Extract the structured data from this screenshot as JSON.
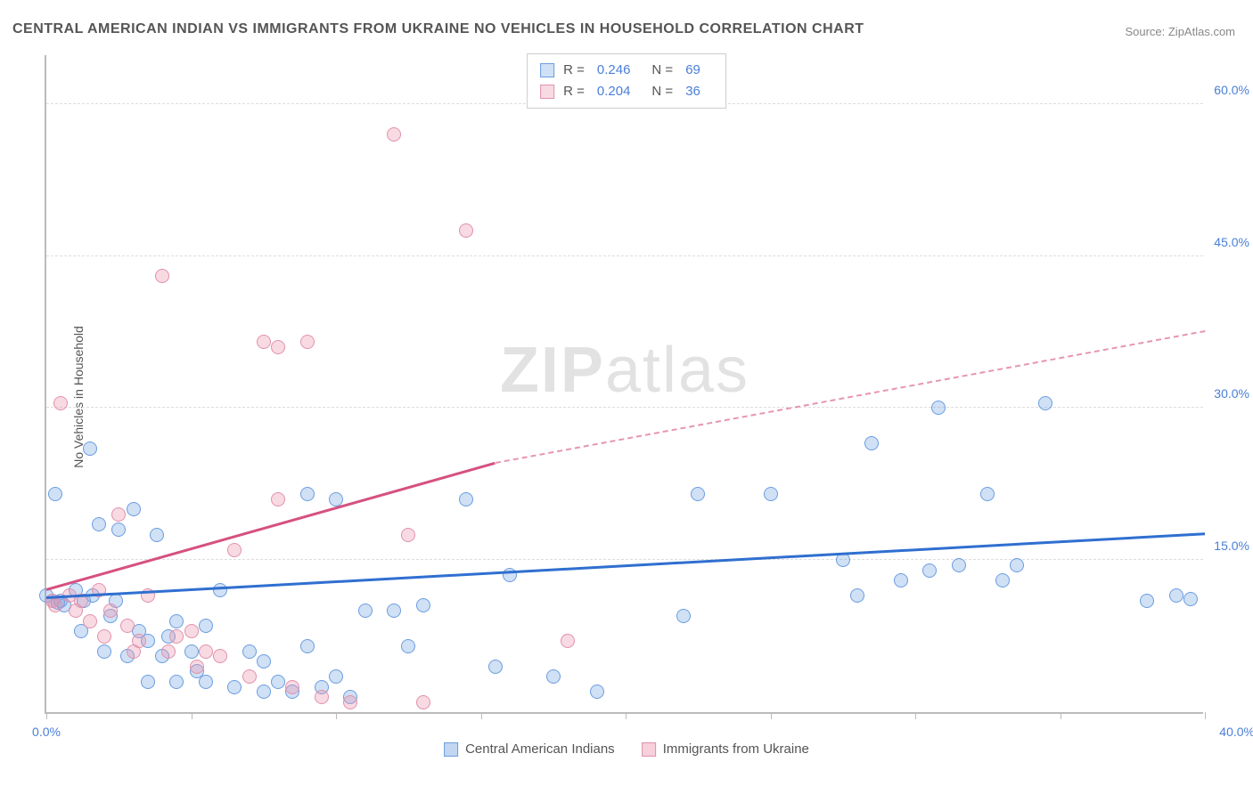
{
  "title": "CENTRAL AMERICAN INDIAN VS IMMIGRANTS FROM UKRAINE NO VEHICLES IN HOUSEHOLD CORRELATION CHART",
  "source": "Source: ZipAtlas.com",
  "ylabel": "No Vehicles in Household",
  "watermark_a": "ZIP",
  "watermark_b": "atlas",
  "chart": {
    "type": "scatter",
    "xlim": [
      0,
      40
    ],
    "ylim": [
      0,
      65
    ],
    "yticks": [
      {
        "v": 15,
        "label": "15.0%"
      },
      {
        "v": 30,
        "label": "30.0%"
      },
      {
        "v": 45,
        "label": "45.0%"
      },
      {
        "v": 60,
        "label": "60.0%"
      }
    ],
    "xticks_major": [
      0,
      40
    ],
    "xtick_labels": {
      "0": "0.0%",
      "40": "40.0%"
    },
    "xticks_minor": [
      5,
      10,
      15,
      20,
      25,
      30,
      35
    ],
    "background": "#ffffff",
    "grid_color": "#dddddd",
    "axis_color": "#bbbbbb",
    "series": [
      {
        "name": "Central American Indians",
        "color_fill": "rgba(120,165,225,0.35)",
        "color_stroke": "#6a9de0",
        "marker_r": 8,
        "R": "0.246",
        "N": "69",
        "trend": {
          "x1": 0,
          "y1": 11.2,
          "x2": 40,
          "y2": 17.5,
          "color": "#2f6fd0",
          "dash_from": 40
        },
        "points": [
          [
            0.0,
            11.5
          ],
          [
            0.2,
            11.0
          ],
          [
            0.3,
            21.5
          ],
          [
            0.4,
            10.8
          ],
          [
            0.5,
            11.0
          ],
          [
            0.6,
            10.5
          ],
          [
            1.0,
            12.0
          ],
          [
            1.2,
            8.0
          ],
          [
            1.3,
            11.0
          ],
          [
            1.5,
            26.0
          ],
          [
            1.6,
            11.5
          ],
          [
            1.8,
            18.5
          ],
          [
            2.0,
            6.0
          ],
          [
            2.2,
            9.5
          ],
          [
            2.4,
            11.0
          ],
          [
            2.5,
            18.0
          ],
          [
            2.8,
            5.5
          ],
          [
            3.0,
            20.0
          ],
          [
            3.2,
            8.0
          ],
          [
            3.5,
            7.0
          ],
          [
            3.5,
            3.0
          ],
          [
            3.8,
            17.5
          ],
          [
            4.0,
            5.5
          ],
          [
            4.2,
            7.5
          ],
          [
            4.5,
            9.0
          ],
          [
            4.5,
            3.0
          ],
          [
            5.0,
            6.0
          ],
          [
            5.2,
            4.0
          ],
          [
            5.5,
            8.5
          ],
          [
            5.5,
            3.0
          ],
          [
            6.0,
            12.0
          ],
          [
            6.5,
            2.5
          ],
          [
            7.0,
            6.0
          ],
          [
            7.5,
            5.0
          ],
          [
            7.5,
            2.0
          ],
          [
            8.0,
            3.0
          ],
          [
            8.5,
            2.0
          ],
          [
            9.0,
            6.5
          ],
          [
            9.0,
            21.5
          ],
          [
            9.5,
            2.5
          ],
          [
            10.0,
            3.5
          ],
          [
            10.0,
            21.0
          ],
          [
            10.5,
            1.5
          ],
          [
            11.0,
            10.0
          ],
          [
            12.0,
            10.0
          ],
          [
            12.5,
            6.5
          ],
          [
            13.0,
            10.5
          ],
          [
            14.5,
            21.0
          ],
          [
            15.5,
            4.5
          ],
          [
            16.0,
            13.5
          ],
          [
            17.5,
            3.5
          ],
          [
            19.0,
            2.0
          ],
          [
            22.0,
            9.5
          ],
          [
            22.5,
            21.5
          ],
          [
            25.0,
            21.5
          ],
          [
            27.5,
            15.0
          ],
          [
            28.0,
            11.5
          ],
          [
            28.5,
            26.5
          ],
          [
            29.5,
            13.0
          ],
          [
            30.5,
            14.0
          ],
          [
            30.8,
            30.0
          ],
          [
            31.5,
            14.5
          ],
          [
            32.5,
            21.5
          ],
          [
            33.0,
            13.0
          ],
          [
            33.5,
            14.5
          ],
          [
            34.5,
            30.5
          ],
          [
            38.0,
            11.0
          ],
          [
            39.0,
            11.5
          ],
          [
            39.5,
            11.2
          ]
        ]
      },
      {
        "name": "Immigrants from Ukraine",
        "color_fill": "rgba(235,150,175,0.35)",
        "color_stroke": "#e290ac",
        "marker_r": 8,
        "R": "0.204",
        "N": "36",
        "trend": {
          "x1": 0,
          "y1": 12.0,
          "x2": 15.5,
          "y2": 24.5,
          "color": "#d65080",
          "dash_from": 15.5,
          "dash_to_x": 40,
          "dash_to_y": 37.5
        },
        "points": [
          [
            0.2,
            11.0
          ],
          [
            0.3,
            10.5
          ],
          [
            0.5,
            30.5
          ],
          [
            0.8,
            11.5
          ],
          [
            1.0,
            10.0
          ],
          [
            1.2,
            11.0
          ],
          [
            1.5,
            9.0
          ],
          [
            1.8,
            12.0
          ],
          [
            2.0,
            7.5
          ],
          [
            2.2,
            10.0
          ],
          [
            2.5,
            19.5
          ],
          [
            2.8,
            8.5
          ],
          [
            3.0,
            6.0
          ],
          [
            3.2,
            7.0
          ],
          [
            3.5,
            11.5
          ],
          [
            4.0,
            43.0
          ],
          [
            4.2,
            6.0
          ],
          [
            4.5,
            7.5
          ],
          [
            5.0,
            8.0
          ],
          [
            5.2,
            4.5
          ],
          [
            5.5,
            6.0
          ],
          [
            6.0,
            5.5
          ],
          [
            6.5,
            16.0
          ],
          [
            7.0,
            3.5
          ],
          [
            7.5,
            36.5
          ],
          [
            8.0,
            36.0
          ],
          [
            8.0,
            21.0
          ],
          [
            8.5,
            2.5
          ],
          [
            9.0,
            36.5
          ],
          [
            9.5,
            1.5
          ],
          [
            10.5,
            1.0
          ],
          [
            12.0,
            57.0
          ],
          [
            12.5,
            17.5
          ],
          [
            13.0,
            1.0
          ],
          [
            14.5,
            47.5
          ],
          [
            18.0,
            7.0
          ]
        ]
      }
    ]
  },
  "legend_bottom": [
    {
      "label": "Central American Indians",
      "fill": "rgba(120,165,225,0.45)",
      "stroke": "#6a9de0"
    },
    {
      "label": "Immigrants from Ukraine",
      "fill": "rgba(235,150,175,0.45)",
      "stroke": "#e290ac"
    }
  ]
}
